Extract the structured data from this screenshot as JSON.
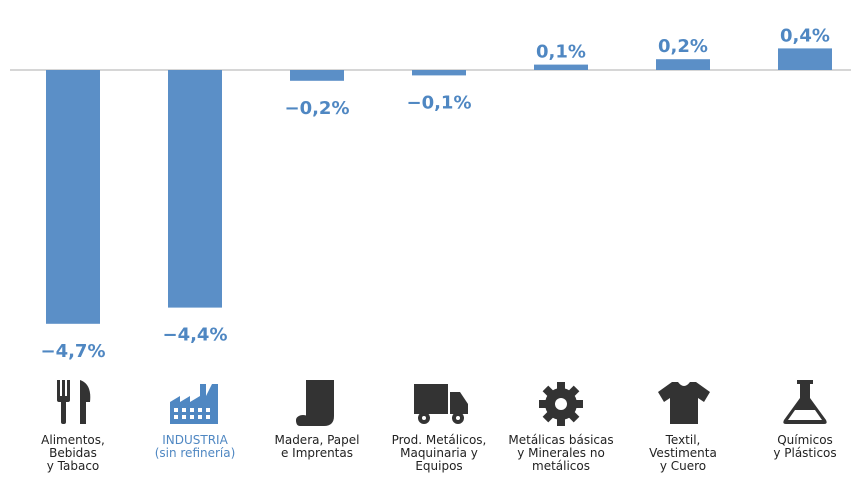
{
  "chart_data": {
    "type": "bar",
    "categories": [
      "Alimentos,\nBebidas\ny Tabaco",
      "INDUSTRIA\n(sin refinería)",
      "Madera, Papel\ne Imprentas",
      "Prod. Metálicos,\nMaquinaria y\nEquipos",
      "Metálicas básicas\ny Minerales no\nmetálicos",
      "Textil,\nVestimenta\ny Cuero",
      "Químicos\ny Plásticos"
    ],
    "values": [
      -4.7,
      -4.4,
      -0.2,
      -0.1,
      0.1,
      0.2,
      0.4
    ],
    "value_labels": [
      "−4,7%",
      "−4,4%",
      "−0,2%",
      "−0,1%",
      "0,1%",
      "0,2%",
      "0,4%"
    ],
    "color": "#5b8fc7"
  }
}
